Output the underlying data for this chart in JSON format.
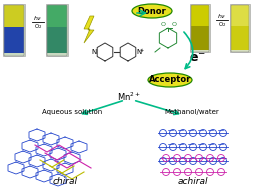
{
  "bg_color": "#ffffff",
  "donor_label": "Donor",
  "acceptor_label": "Acceptor",
  "mn_label": "Mn$^{2+}$",
  "aqueous_label": "Aqueous solution",
  "methanol_label": "Methanol/water",
  "chiral_label": "chiral",
  "achiral_label": "achiral",
  "eminus_label": "e$^{-}$",
  "donor_bg": "#e8e020",
  "acceptor_bg": "#e8e020",
  "bipy_color": "#333333",
  "lightning_color": "#e8e020",
  "struct_blue": "#2244cc",
  "struct_magenta": "#cc22aa",
  "struct_yellow": "#bbbb00",
  "arrow_teal": "#00bb88",
  "mol_green": "#228833",
  "tube_left1_top": "#cccc22",
  "tube_left1_bot": "#3355aa",
  "tube_left2_top": "#44aa66",
  "tube_left2_bot": "#338855",
  "tube_right1_top": "#cccc00",
  "tube_right1_bot": "#aaaa00",
  "tube_right2_top": "#dddd44",
  "tube_right2_bot": "#cccc11",
  "hv_text": "$h\\nu$",
  "o2_text": "O$_2$"
}
